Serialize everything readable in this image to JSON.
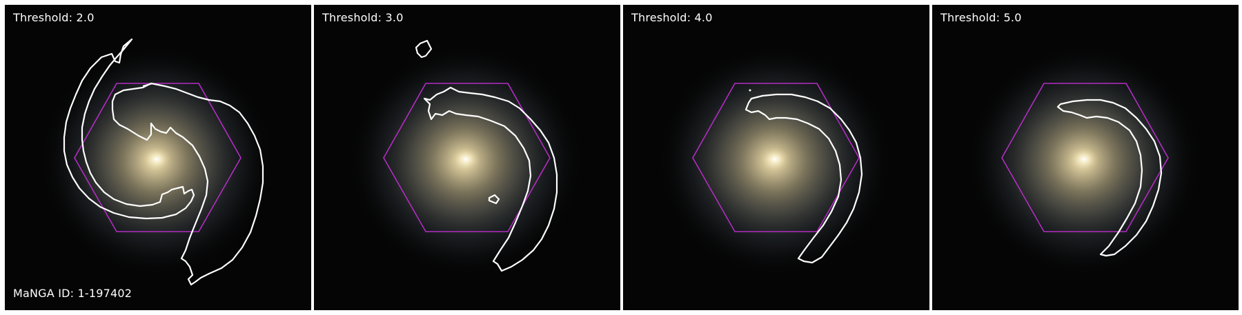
{
  "figure": {
    "panels": [
      {
        "label": "Threshold: 2.0"
      },
      {
        "label": "Threshold: 3.0"
      },
      {
        "label": "Threshold: 4.0"
      },
      {
        "label": "Threshold: 5.0"
      }
    ],
    "manga_id_label": "MaNGA ID: 1-197402"
  },
  "colors": {
    "background": "#050505",
    "galaxy_core": "#f4ecc6",
    "galaxy_halo": "#8a9aa8",
    "hexagon": "#b42cc4",
    "contour": "#ffffff",
    "separator": "#ffffff"
  }
}
